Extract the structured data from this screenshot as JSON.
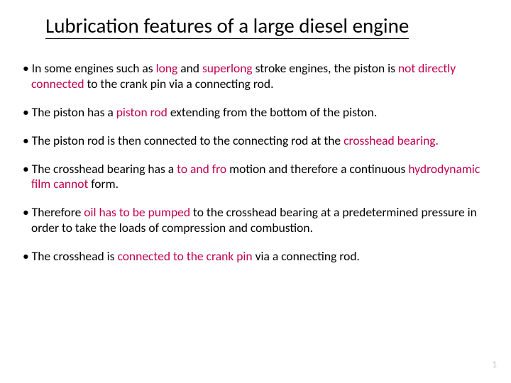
{
  "title": {
    "text": "Lubrication features of a large diesel engine",
    "fontsize": 29,
    "color": "#000000",
    "underline_color": "#000000"
  },
  "accent_color": "#c00050",
  "text_color": "#000000",
  "background_color": "#ffffff",
  "page_number": "1",
  "page_number_color": "#bfbfbf",
  "bullets": [
    {
      "segments": [
        {
          "t": "• In some engines such as ",
          "accent": false
        },
        {
          "t": "long",
          "accent": true
        },
        {
          "t": " and ",
          "accent": false
        },
        {
          "t": "superlong",
          "accent": true
        },
        {
          "t": " stroke engines, the piston is ",
          "accent": false
        },
        {
          "t": "not directly connected",
          "accent": true
        },
        {
          "t": " to the crank pin via a connecting rod.",
          "accent": false
        }
      ]
    },
    {
      "segments": [
        {
          "t": "• The piston has a ",
          "accent": false
        },
        {
          "t": "piston rod",
          "accent": true
        },
        {
          "t": " extending from the bottom of the piston.",
          "accent": false
        }
      ]
    },
    {
      "segments": [
        {
          "t": "• The piston rod is then connected to the connecting rod at the ",
          "accent": false
        },
        {
          "t": "crosshead bearing.",
          "accent": true
        }
      ]
    },
    {
      "segments": [
        {
          "t": "• The crosshead bearing has a ",
          "accent": false
        },
        {
          "t": "to and fro",
          "accent": true
        },
        {
          "t": " motion and therefore a continuous ",
          "accent": false
        },
        {
          "t": "hydrodynamic film cannot",
          "accent": true
        },
        {
          "t": " form.",
          "accent": false
        }
      ]
    },
    {
      "segments": [
        {
          "t": "• Therefore ",
          "accent": false
        },
        {
          "t": "oil has to be pumped",
          "accent": true
        },
        {
          "t": " to the crosshead bearing at a predetermined pressure in order to take the loads of compression and combustion.",
          "accent": false
        }
      ]
    },
    {
      "segments": [
        {
          "t": "• The crosshead is ",
          "accent": false
        },
        {
          "t": "connected to the crank pin",
          "accent": true
        },
        {
          "t": " via a connecting rod.",
          "accent": false
        }
      ]
    }
  ]
}
